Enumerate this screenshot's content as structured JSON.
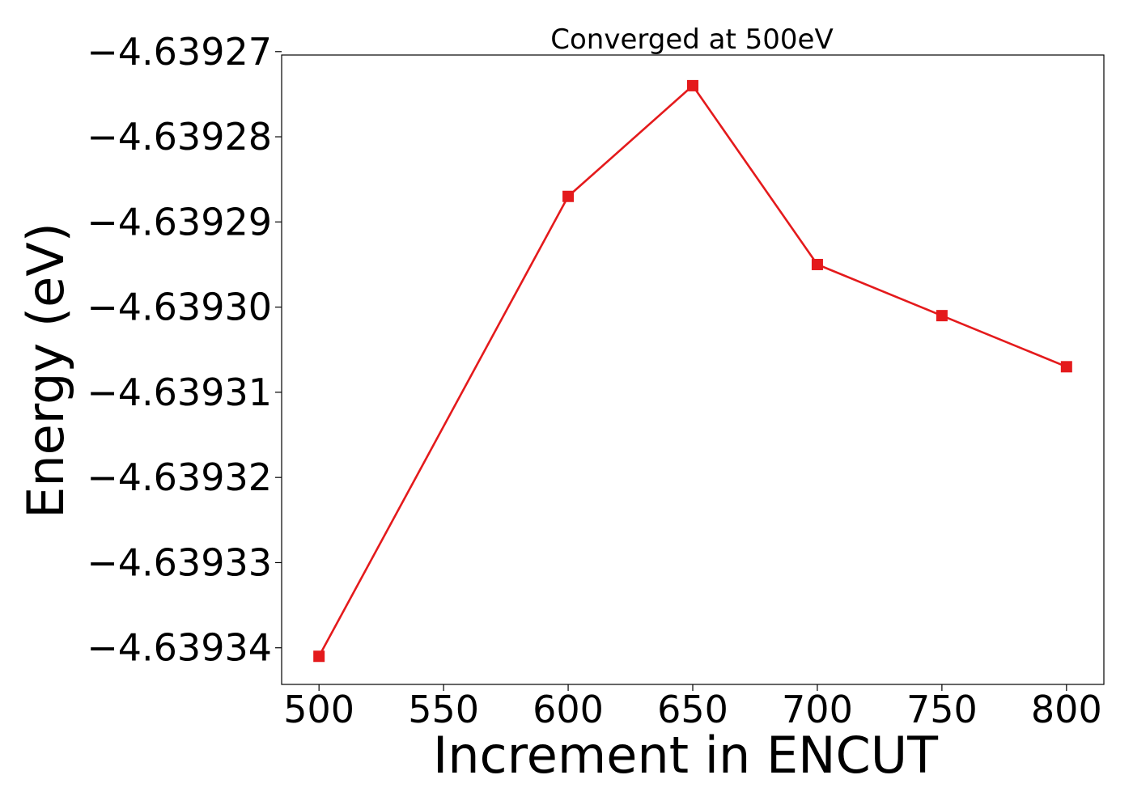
{
  "chart_data": {
    "type": "line",
    "title": "Converged at 500eV",
    "xlabel": "Increment in ENCUT",
    "ylabel": "Energy (eV)",
    "x": [
      500,
      600,
      650,
      700,
      750,
      800
    ],
    "series": [
      {
        "values": [
          -4.639341,
          -4.639287,
          -4.639274,
          -4.639295,
          -4.639301,
          -4.639307
        ],
        "color": "#e41a1c",
        "marker": "square"
      }
    ],
    "xlim": [
      485,
      815
    ],
    "ylim": [
      -4.6393443,
      -4.6392704
    ],
    "xticks": [
      500,
      550,
      600,
      650,
      700,
      750,
      800
    ],
    "xtick_labels": [
      "500",
      "550",
      "600",
      "650",
      "700",
      "750",
      "800"
    ],
    "yticks": [
      -4.63927,
      -4.63928,
      -4.63929,
      -4.6393,
      -4.63931,
      -4.63932,
      -4.63933,
      -4.63934
    ],
    "ytick_labels": [
      "−4.63927",
      "−4.63928",
      "−4.63929",
      "−4.63930",
      "−4.63931",
      "−4.63932",
      "−4.63933",
      "−4.63934"
    ],
    "grid": false,
    "legend": "none"
  }
}
